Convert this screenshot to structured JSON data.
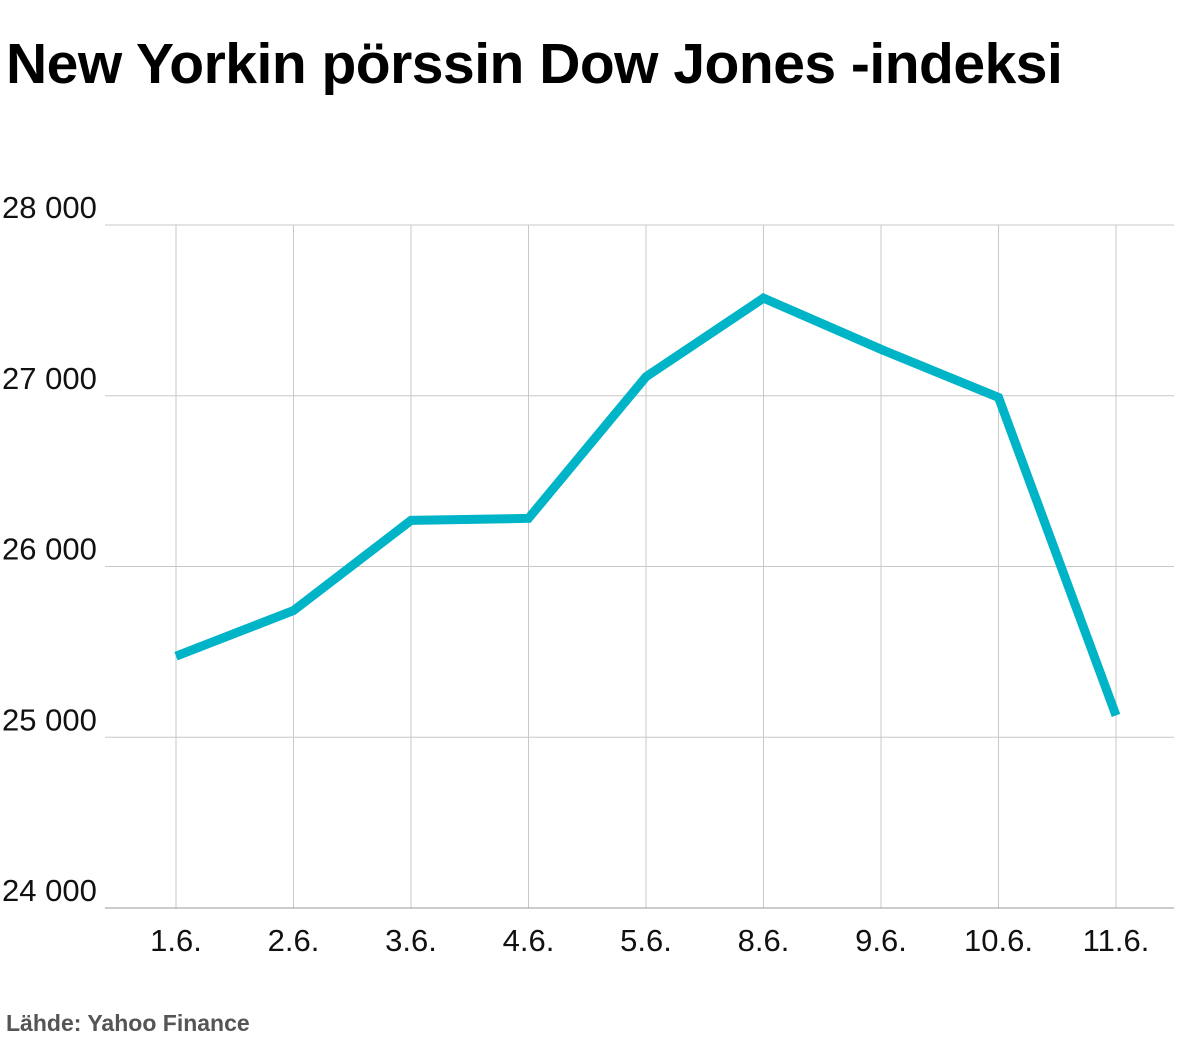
{
  "chart_data": {
    "type": "line",
    "title": "New Yorkin pörssin Dow Jones -indeksi",
    "categories": [
      "1.6.",
      "2.6.",
      "3.6.",
      "4.6.",
      "5.6.",
      "8.6.",
      "9.6.",
      "10.6.",
      "11.6."
    ],
    "series": [
      {
        "name": "Dow Jones",
        "values": [
          25475,
          25742,
          26270,
          26282,
          27111,
          27572,
          27272,
          26990,
          25128
        ],
        "color": "#00b4c8"
      }
    ],
    "yticks": [
      24000,
      25000,
      26000,
      27000,
      28000
    ],
    "ytick_labels": [
      "24 000",
      "25 000",
      "26 000",
      "27 000",
      "28 000"
    ],
    "ylim": [
      24000,
      28000
    ],
    "xlabel": "",
    "ylabel": "",
    "grid": true,
    "source": "Lähde: Yahoo Finance"
  }
}
